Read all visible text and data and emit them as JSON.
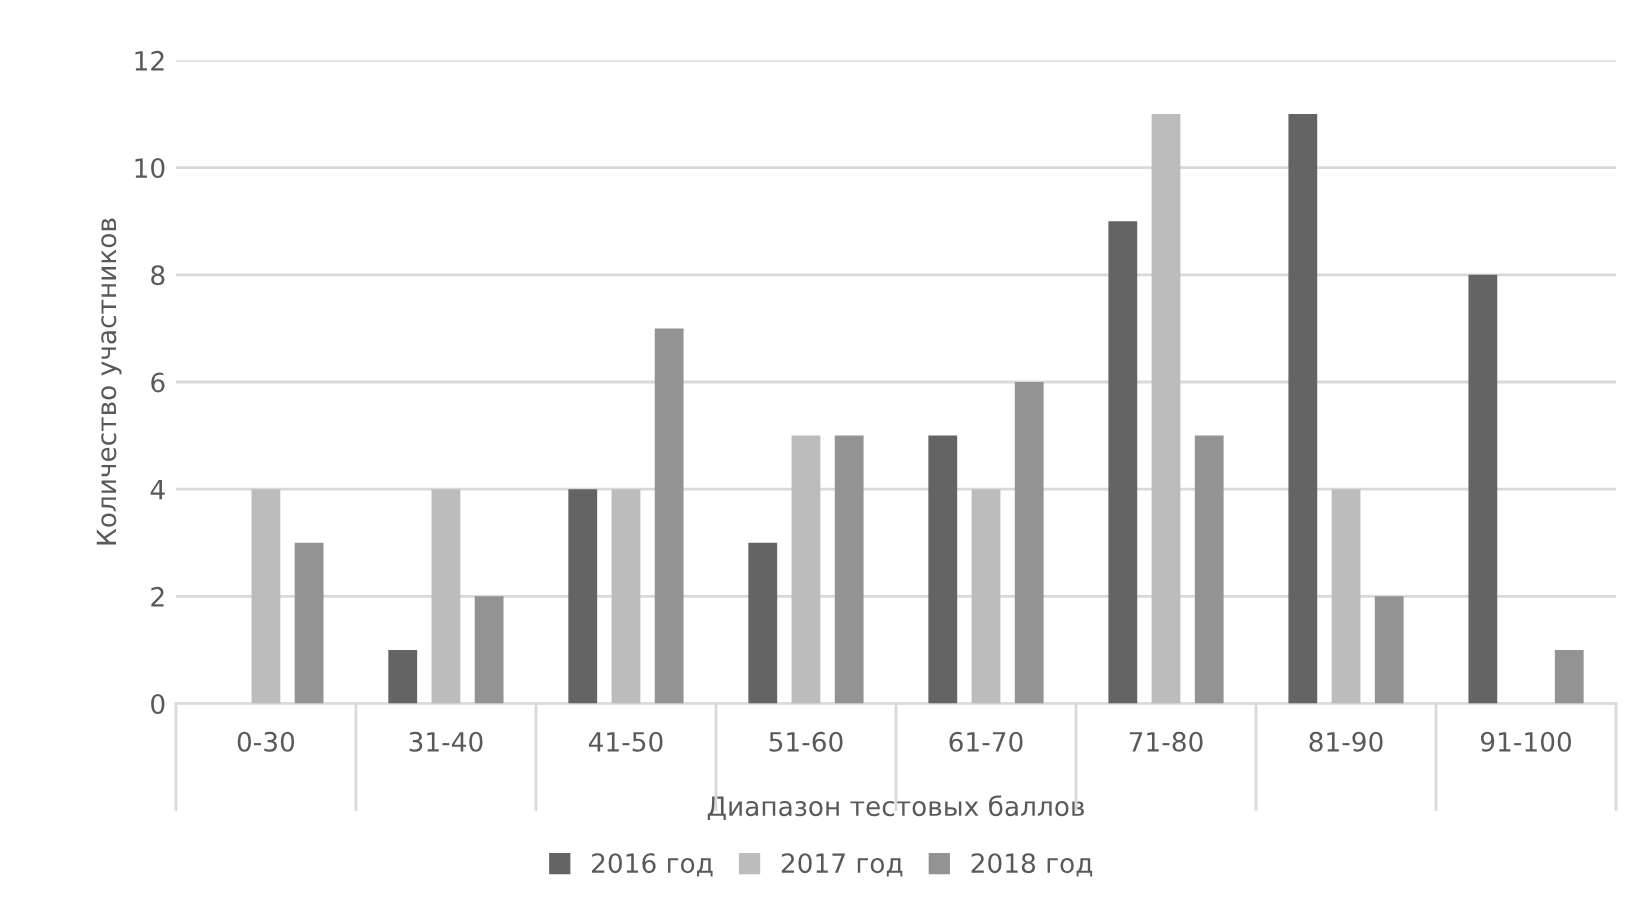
{
  "chart_data": {
    "type": "bar",
    "xlabel": "Диапазон тестовых баллов",
    "ylabel": "Количество участников",
    "categories": [
      "0-30",
      "31-40",
      "41-50",
      "51-60",
      "61-70",
      "71-80",
      "81-90",
      "91-100"
    ],
    "series": [
      {
        "name": "2016 год",
        "color": "#646464",
        "values": [
          0,
          1,
          4,
          3,
          5,
          9,
          11,
          8
        ]
      },
      {
        "name": "2017 год",
        "color": "#bcbcbc",
        "values": [
          4,
          4,
          4,
          5,
          4,
          11,
          4,
          0
        ]
      },
      {
        "name": "2018 год",
        "color": "#939393",
        "values": [
          3,
          2,
          7,
          5,
          6,
          5,
          2,
          1
        ]
      }
    ],
    "ylim": [
      0,
      12
    ],
    "yticks": [
      0,
      2,
      4,
      6,
      8,
      10,
      12
    ],
    "grid": "y",
    "legend": "bottom"
  }
}
